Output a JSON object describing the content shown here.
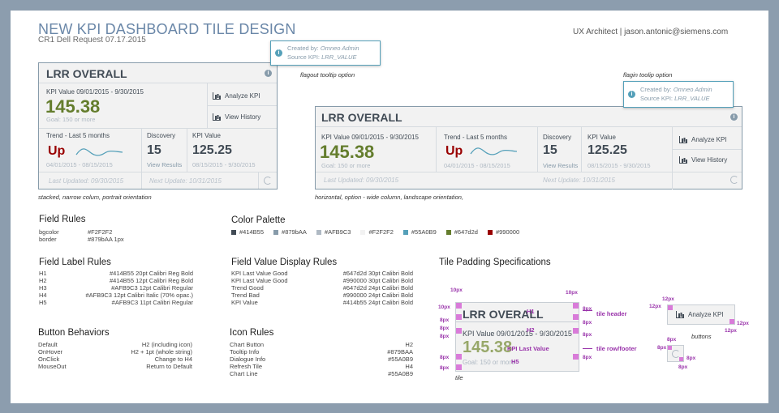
{
  "header": {
    "title": "NEW KPI DASHBOARD TILE DESIGN",
    "subtitle": "CR1 Dell Request 07.17.2015",
    "author": "UX Architect  |  jason.antonic@siemens.com"
  },
  "tile": {
    "title": "LRR OVERALL",
    "kpi_label": "KPI Value 09/01/2015 - 9/30/2015",
    "kpi_value": "145.38",
    "goal": "Goal: 150 or more",
    "trend_label": "Trend - Last 5 months",
    "trend_value": "Up",
    "trend_dates": "04/01/2015 - 08/15/2015",
    "discovery_label": "Discovery",
    "discovery_value": "15",
    "view_results": "View Results",
    "kpi2_label": "KPI Value",
    "kpi2_value": "125.25",
    "kpi2_dates": "08/15/2015 - 9/30/2015",
    "last_updated": "Last Updated: 09/30/2015",
    "next_update": "Next Update: 10/31/2015",
    "analyze": "Analyze KPI",
    "history": "View History"
  },
  "tooltip": {
    "created_label": "Created by:",
    "created_value": "Omneo Admin",
    "source_label": "Source KPI:",
    "source_value": "LRR_VALUE"
  },
  "notes": {
    "flagout": "flagout tooltip option",
    "flagin": "flagin toolip option",
    "stacked": "stacked, narrow colum, portrait orientation",
    "horizontal": "horizontal, option - wide column, landscape orientation,"
  },
  "field_rules": {
    "title": "Field Rules",
    "rows": [
      {
        "k": "bgcolor",
        "v": "#F2F2F2"
      },
      {
        "k": "border",
        "v": "#879bAA 1px"
      }
    ]
  },
  "color_palette": {
    "title": "Color Palette",
    "colors": [
      {
        "label": "#414B55",
        "hex": "#414B55"
      },
      {
        "label": "#879bAA",
        "hex": "#879BAA"
      },
      {
        "label": "#AFB9C3",
        "hex": "#AFB9C3"
      },
      {
        "label": "#F2F2F2",
        "hex": "#F2F2F2"
      },
      {
        "label": "#55A0B9",
        "hex": "#55A0B9"
      },
      {
        "label": "#647d2d",
        "hex": "#647d2d"
      },
      {
        "label": "#990000",
        "hex": "#990000"
      }
    ]
  },
  "field_label_rules": {
    "title": "Field Label Rules",
    "rows": [
      {
        "k": "H1",
        "v": "#414B55  20pt Calibri Reg Bold"
      },
      {
        "k": "H2",
        "v": "#414B55  12pt Calibri Reg Bold"
      },
      {
        "k": "H3",
        "v": "#AFB9C3  12pt Calibri Regular"
      },
      {
        "k": "H4",
        "v": "#AFB9C3  12pt Calibri Italic (70% opac.)"
      },
      {
        "k": "H5",
        "v": "#AFB9C3 11pt Calibri Regular"
      }
    ]
  },
  "field_value_rules": {
    "title": "Field Value Display Rules",
    "rows": [
      {
        "k": "KPI Last Value Good",
        "v": "#647d2d 30pt Calibri Bold"
      },
      {
        "k": "KPI Last Value  Good",
        "v": "#990000 30pt Calibri Bold"
      },
      {
        "k": "Trend Good",
        "v": "#647d2d 24pt Calibri Bold"
      },
      {
        "k": "Trend Bad",
        "v": "#990000 24pt Calibri Bold"
      },
      {
        "k": "KPI Value",
        "v": "#414b55 24pt Calibri Bold"
      }
    ]
  },
  "button_behaviors": {
    "title": "Button Behaviors",
    "rows": [
      {
        "k": "Default",
        "v": "H2 (including icon)"
      },
      {
        "k": "OnHover",
        "v": "H2 + 1pt (whole string)"
      },
      {
        "k": "OnClick",
        "v": "Change to H4"
      },
      {
        "k": "MouseOut",
        "v": "Return to Default"
      }
    ]
  },
  "icon_rules": {
    "title": "Icon Rules",
    "rows": [
      {
        "k": "Chart Button",
        "v": "H2"
      },
      {
        "k": "Tooltip Info",
        "v": "#879BAA"
      },
      {
        "k": "Dialogue Info",
        "v": "#55A0B9"
      },
      {
        "k": "Refresh Tile",
        "v": "H4"
      },
      {
        "k": "Chart Line",
        "v": "#55A0B9"
      }
    ]
  },
  "padding_spec": {
    "title": "Tile Padding Specifications",
    "p10": "10px",
    "p8": "8px",
    "p12": "12px",
    "h1": "H1",
    "h2": "H2",
    "h5": "H5",
    "kpi_last_value": "KPI Last Value",
    "tile_header": "tile header",
    "tile_row": "tile row/footer",
    "buttons": "buttons",
    "tile": "tile"
  }
}
